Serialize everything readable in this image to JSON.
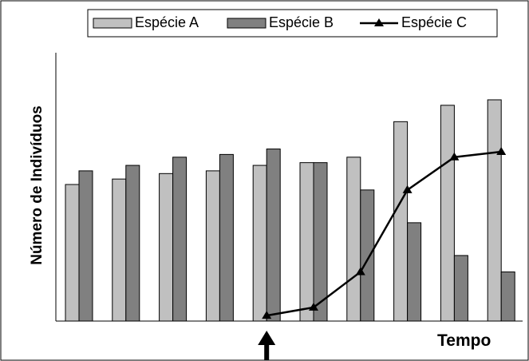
{
  "chart_data": {
    "type": "bar",
    "title": "",
    "xlabel": "Tempo",
    "ylabel": "Número de Indivíduos",
    "legend_position": "top",
    "grid": false,
    "ylim": [
      0,
      100
    ],
    "categories": [
      "",
      "",
      "",
      "",
      "",
      "",
      "",
      "",
      "",
      ""
    ],
    "series": [
      {
        "name": "Espécie A",
        "kind": "bar",
        "color": "#c0c0c0",
        "values": [
          50,
          52,
          54,
          55,
          57,
          58,
          60,
          73,
          79,
          81
        ]
      },
      {
        "name": "Espécie B",
        "kind": "bar",
        "color": "#808080",
        "values": [
          55,
          57,
          60,
          61,
          63,
          58,
          48,
          36,
          24,
          18
        ]
      },
      {
        "name": "Espécie C",
        "kind": "line",
        "color": "#000000",
        "marker": "triangle",
        "start_index": 4,
        "values": [
          null,
          null,
          null,
          null,
          2,
          5,
          18,
          48,
          60,
          62
        ]
      }
    ],
    "annotations": [
      {
        "type": "arrow-up",
        "category_index": 4
      }
    ]
  }
}
